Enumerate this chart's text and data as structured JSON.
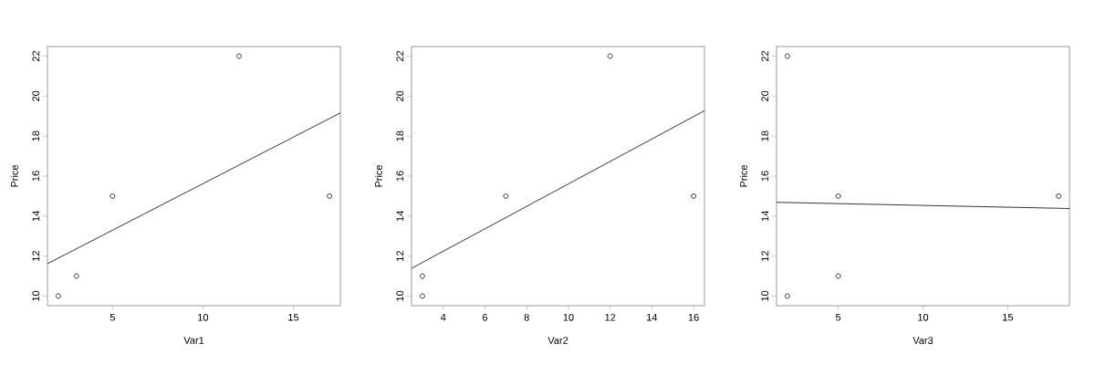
{
  "chart_data": [
    {
      "type": "scatter",
      "xlabel": "Var1",
      "ylabel": "Price",
      "xlim": [
        1.4,
        17.6
      ],
      "ylim": [
        9.52,
        22.48
      ],
      "xticks": [
        5,
        10,
        15
      ],
      "yticks": [
        10,
        12,
        14,
        16,
        18,
        20,
        22
      ],
      "grid": false,
      "series": [
        {
          "marker": "circle",
          "color": "#000000",
          "x": [
            2,
            3,
            5,
            12,
            17
          ],
          "values": [
            10,
            11,
            15,
            22,
            15
          ]
        },
        {
          "type": "line",
          "marker": "none",
          "color": "#000000",
          "x": [
            1.4,
            17.6
          ],
          "values": [
            11.62,
            19.16
          ]
        }
      ]
    },
    {
      "type": "scatter",
      "xlabel": "Var2",
      "ylabel": "Price",
      "xlim": [
        2.48,
        16.52
      ],
      "ylim": [
        9.52,
        22.48
      ],
      "xticks": [
        4,
        6,
        8,
        10,
        12,
        14,
        16
      ],
      "yticks": [
        10,
        12,
        14,
        16,
        18,
        20,
        22
      ],
      "grid": false,
      "series": [
        {
          "marker": "circle",
          "color": "#000000",
          "x": [
            3,
            3,
            7,
            12,
            16
          ],
          "values": [
            10,
            11,
            15,
            22,
            15
          ]
        },
        {
          "type": "line",
          "marker": "none",
          "color": "#000000",
          "x": [
            2.48,
            16.52
          ],
          "values": [
            11.39,
            19.27
          ]
        }
      ]
    },
    {
      "type": "scatter",
      "xlabel": "Var3",
      "ylabel": "Price",
      "xlim": [
        1.36,
        18.64
      ],
      "ylim": [
        9.52,
        22.48
      ],
      "xticks": [
        5,
        10,
        15
      ],
      "yticks": [
        10,
        12,
        14,
        16,
        18,
        20,
        22
      ],
      "grid": false,
      "series": [
        {
          "marker": "circle",
          "color": "#000000",
          "x": [
            2,
            5,
            5,
            2,
            18
          ],
          "values": [
            10,
            11,
            15,
            22,
            15
          ]
        },
        {
          "type": "line",
          "marker": "none",
          "color": "#000000",
          "x": [
            1.36,
            18.64
          ],
          "values": [
            14.69,
            14.38
          ]
        }
      ]
    }
  ]
}
